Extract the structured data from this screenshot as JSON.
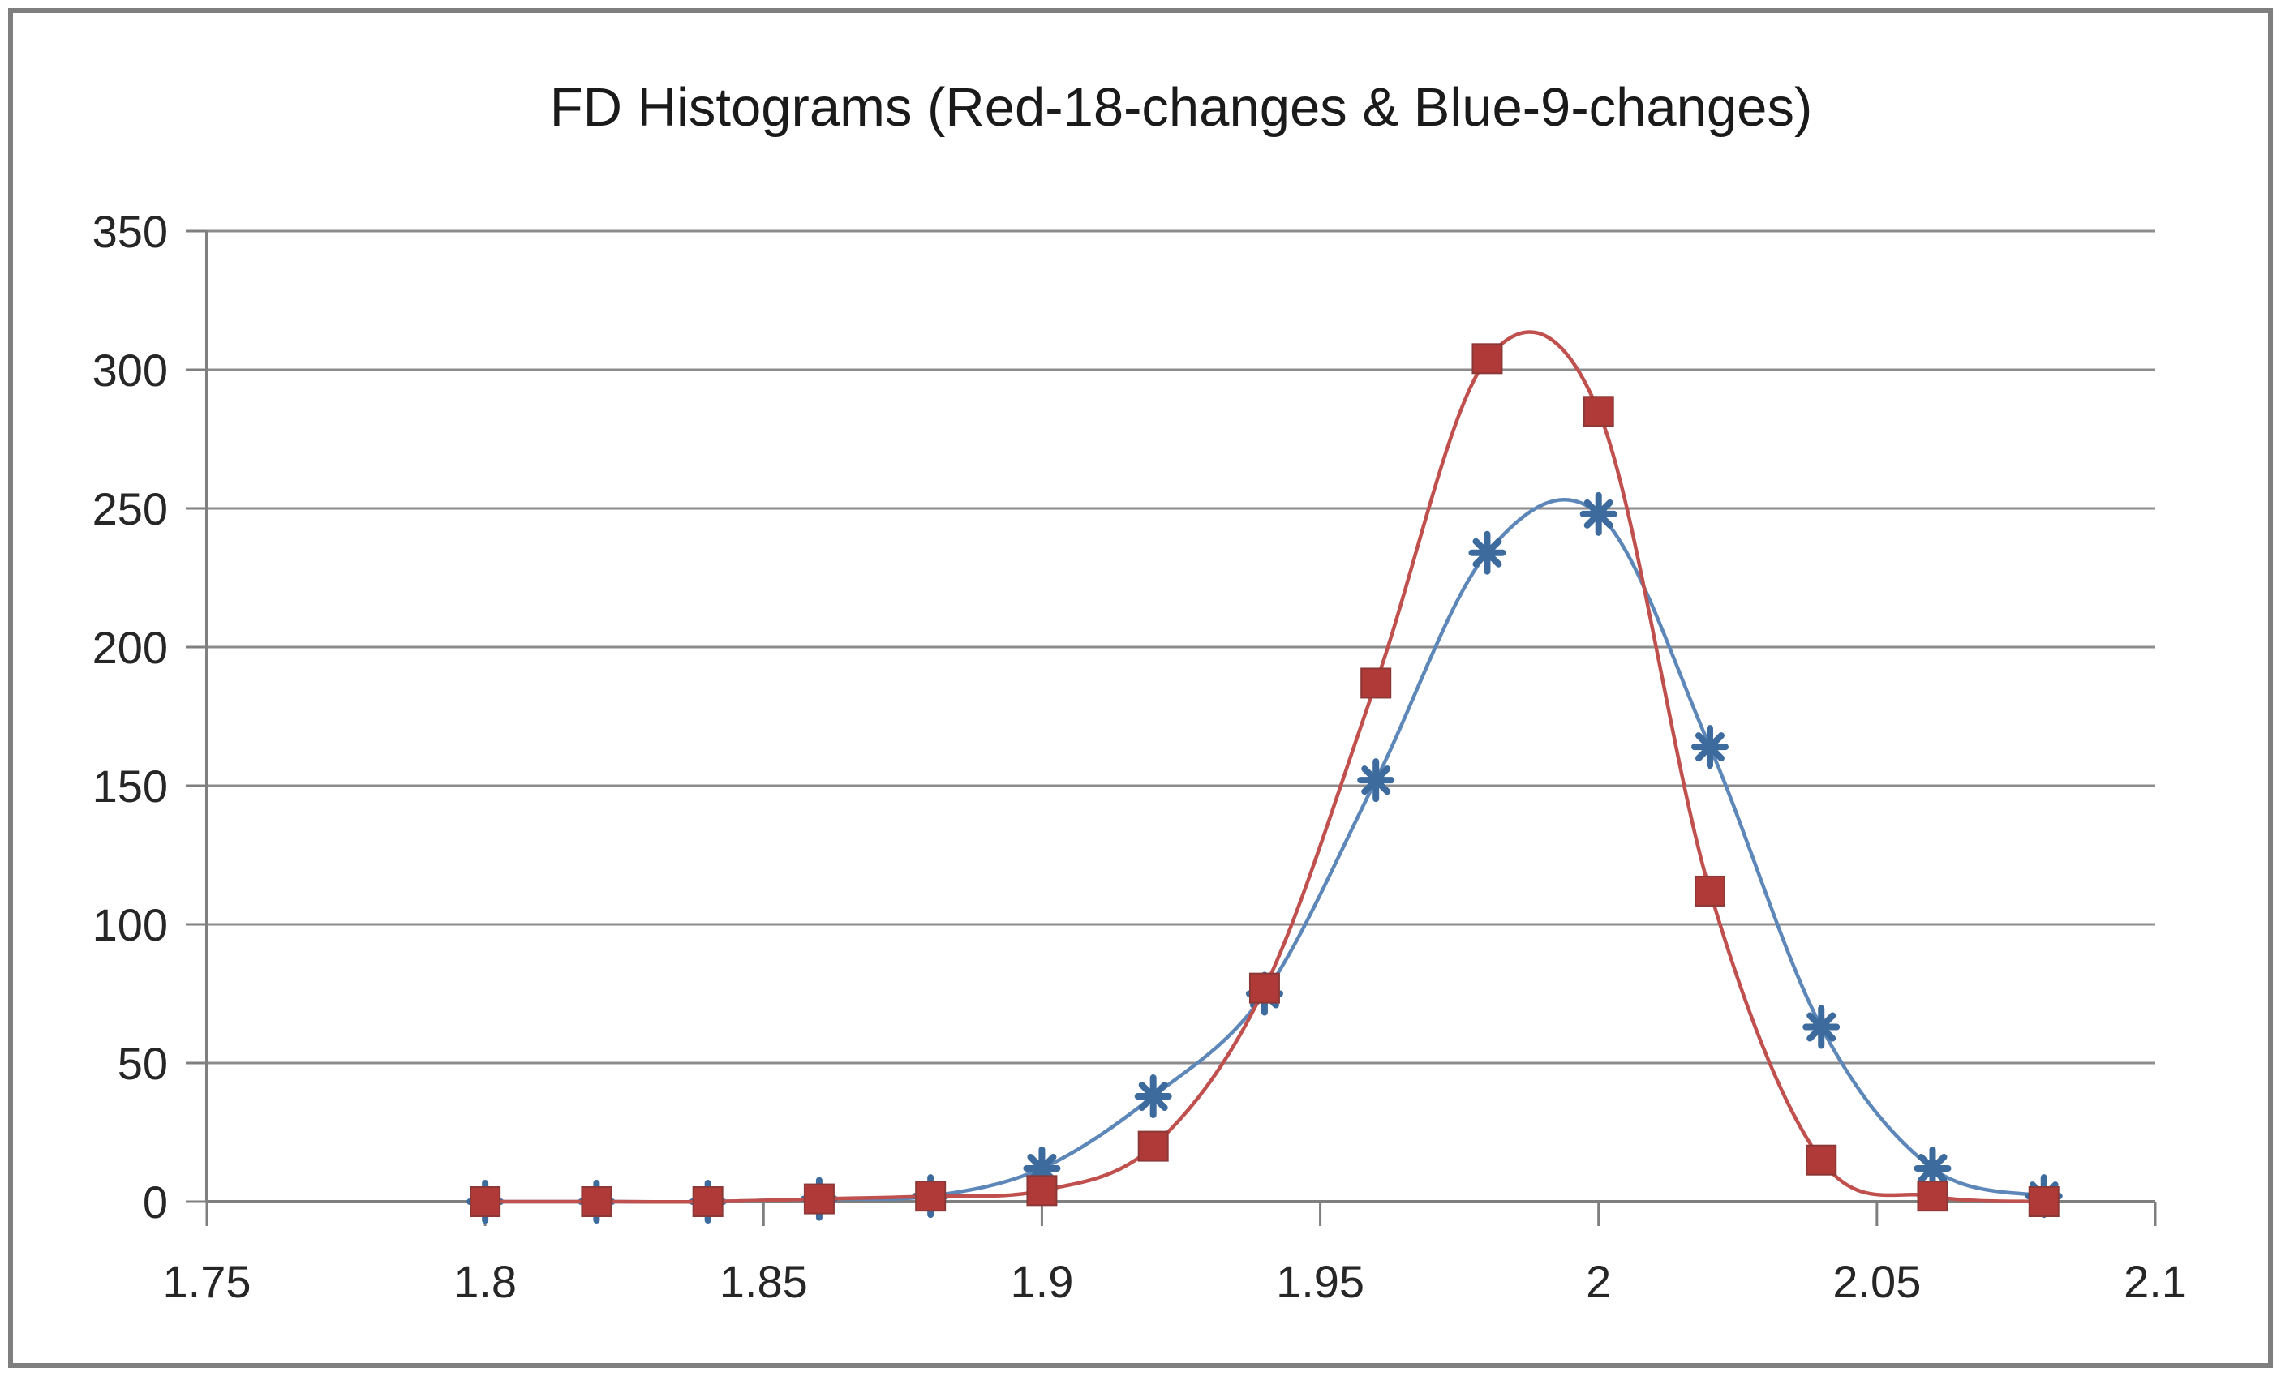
{
  "chart_data": {
    "type": "line",
    "title": "FD Histograms (Red-18-changes & Blue-9-changes)",
    "x": [
      1.8,
      1.82,
      1.84,
      1.86,
      1.88,
      1.9,
      1.92,
      1.94,
      1.96,
      1.98,
      2.0,
      2.02,
      2.04,
      2.06,
      2.08
    ],
    "series": [
      {
        "name": "Red-18-changes",
        "marker": "square",
        "line_color": "#C0504D",
        "marker_color": "#B03A37",
        "values": [
          0,
          0,
          0,
          1,
          2,
          4,
          20,
          77,
          187,
          304,
          285,
          112,
          15,
          2,
          0
        ]
      },
      {
        "name": "Blue-9-changes",
        "marker": "star",
        "line_color": "#5C87B8",
        "marker_color": "#3D6B9E",
        "values": [
          0,
          0,
          0,
          1,
          2,
          12,
          38,
          75,
          152,
          234,
          248,
          164,
          63,
          12,
          2
        ]
      }
    ],
    "xlabel": "",
    "ylabel": "",
    "x_tick_labels": [
      "1.75",
      "1.8",
      "1.85",
      "1.9",
      "1.95",
      "2",
      "2.05",
      "2.1"
    ],
    "x_tick_values": [
      1.75,
      1.8,
      1.85,
      1.9,
      1.95,
      2.0,
      2.05,
      2.1
    ],
    "y_tick_labels": [
      "0",
      "50",
      "100",
      "150",
      "200",
      "250",
      "300",
      "350"
    ],
    "y_tick_values": [
      0,
      50,
      100,
      150,
      200,
      250,
      300,
      350
    ],
    "xlim": [
      1.75,
      2.1
    ],
    "ylim": [
      0,
      350
    ],
    "grid": "horizontal",
    "legend_position": "none",
    "line_style": "smooth",
    "grid_color": "#8C8C8C",
    "axis_color": "#7F7F7F",
    "text_color": "#262626",
    "frame_border_color": "#7F7F7F",
    "background_color": "#FFFFFF"
  }
}
